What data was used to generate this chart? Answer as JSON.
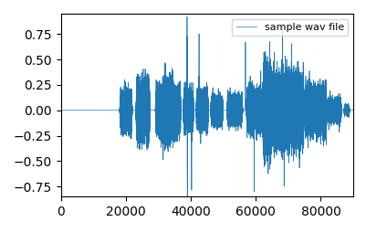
{
  "legend_label": "sample wav file",
  "line_color": "#1f77b4",
  "line_width": 0.5,
  "xlim": [
    0,
    90000
  ],
  "ylim": [
    -0.85,
    0.95
  ],
  "yticks": [
    -0.75,
    -0.5,
    -0.25,
    0.0,
    0.25,
    0.5,
    0.75
  ],
  "xticks": [
    0,
    20000,
    40000,
    60000,
    80000
  ],
  "figsize": [
    4.02,
    2.54
  ],
  "dpi": 100,
  "total_samples": 90000,
  "seed": 7
}
